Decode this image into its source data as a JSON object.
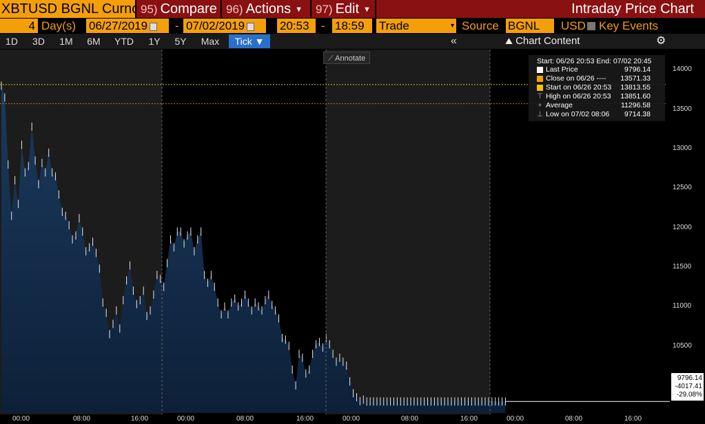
{
  "header": {
    "ticker": "XBTUSD BGNL Curnc",
    "menus": [
      {
        "num": "95)",
        "label": "Compare"
      },
      {
        "num": "96)",
        "label": "Actions"
      },
      {
        "num": "97)",
        "label": "Edit"
      }
    ],
    "title": "Intraday Price Chart"
  },
  "controls": {
    "days_value": "4",
    "days_label": "Day(s)",
    "start_date": "06/27/2019",
    "dash": "-",
    "end_date": "07/02/2019",
    "start_time": "20:53",
    "end_time": "18:59",
    "type": "Trade",
    "source_label": "Source",
    "source": "BGNL",
    "currency": "USD",
    "key_events": "Key Events"
  },
  "toolbar": {
    "ranges": [
      "1D",
      "3D",
      "1M",
      "6M",
      "YTD",
      "1Y",
      "5Y",
      "Max"
    ],
    "active": "Tick ▼",
    "chart_content": "Chart Content"
  },
  "annotate": "Annotate",
  "legend": {
    "header": "Start: 06/26 20:53  End: 07/02 20:45",
    "rows": [
      {
        "label": "Last Price",
        "value": "9796.14",
        "color": "#ffffff"
      },
      {
        "label": "Close on 06/26 ----",
        "value": "13571.33",
        "color": "#f49f0a"
      },
      {
        "label": "Start on 06/26 20:53",
        "value": "13813.55",
        "color": "#f4c20a"
      },
      {
        "label": "High on 06/26 20:53",
        "value": "13851.60",
        "glyph": "⊤"
      },
      {
        "label": "Average",
        "value": "11296.58",
        "glyph": "+"
      },
      {
        "label": "Low on 07/02 08:06",
        "value": "9714.38",
        "glyph": "⊥"
      }
    ]
  },
  "y_axis": [
    "14000",
    "13500",
    "13000",
    "12500",
    "12000",
    "11500",
    "11000",
    "10500",
    "10000"
  ],
  "x_axis": [
    "00:00",
    "08:00",
    "16:00",
    "00:00",
    "08:00",
    "16:00",
    "00:00",
    "08:00",
    "16:00",
    "00:00",
    "08:00",
    "16:00"
  ],
  "last_box": {
    "price": "9796.14",
    "change": "-4017.41",
    "pct": "-29.08%"
  },
  "chart_data": {
    "type": "area",
    "x": [
      0,
      2,
      4,
      6,
      8,
      10,
      12,
      14,
      16,
      18,
      20,
      22,
      24,
      26,
      28,
      30,
      32,
      34,
      36,
      38,
      40,
      42,
      44,
      46,
      48,
      50,
      52,
      54,
      56,
      58,
      60,
      62,
      64,
      66,
      68,
      70,
      72,
      74,
      76,
      78,
      80,
      82,
      84,
      86,
      88,
      90,
      92,
      94,
      96,
      98,
      100,
      102,
      104,
      106,
      108,
      110,
      112,
      114,
      116,
      118,
      120,
      122,
      124,
      126,
      128,
      130,
      132,
      134,
      136,
      138,
      140,
      142,
      144,
      146,
      148,
      150,
      152,
      154,
      156,
      158,
      160,
      162,
      164,
      166,
      168,
      170,
      172,
      174,
      176,
      178,
      180,
      182,
      184,
      186,
      188,
      190,
      192,
      194,
      196,
      198,
      200,
      202,
      204,
      206,
      208,
      210,
      212,
      214,
      216,
      218,
      220,
      222,
      224,
      226,
      228,
      230,
      232,
      234,
      236,
      238,
      240,
      242,
      244,
      246,
      248,
      250,
      252,
      254,
      256,
      258,
      260,
      262,
      264,
      266,
      268,
      270,
      272,
      274,
      276,
      278,
      280,
      282,
      284,
      286,
      288,
      290,
      292,
      294,
      296,
      298
    ],
    "y": [
      13800,
      13650,
      12800,
      12150,
      12600,
      12300,
      13050,
      12700,
      12780,
      13280,
      12850,
      12550,
      12820,
      12700,
      12950,
      12700,
      12650,
      12420,
      12200,
      12150,
      12030,
      11850,
      11900,
      12120,
      11950,
      11700,
      11750,
      11820,
      11680,
      11480,
      11050,
      10920,
      10650,
      10780,
      10950,
      10720,
      11080,
      11330,
      11520,
      11200,
      11030,
      11080,
      11200,
      10880,
      10950,
      11150,
      11400,
      11350,
      11250,
      11550,
      11850,
      11750,
      11950,
      11950,
      11800,
      11900,
      11950,
      11700,
      11850,
      11950,
      11400,
      11300,
      11400,
      11250,
      11050,
      10900,
      11000,
      10900,
      11050,
      11100,
      11000,
      11050,
      11150,
      11050,
      10950,
      11050,
      11000,
      10950,
      11080,
      11150,
      11020,
      10950,
      10850,
      10600,
      10580,
      10500,
      10200,
      10000,
      10400,
      10350,
      10150,
      10200,
      10400,
      10520,
      10550,
      10480,
      10600,
      10520,
      10400,
      10300,
      10350,
      10300,
      10250,
      10050,
      9900,
      9850,
      9800,
      9820,
      9796,
      9796,
      9796,
      9796,
      9796,
      9796,
      9796,
      9796,
      9796,
      9796,
      9796,
      9796,
      9796,
      9796,
      9796,
      9796,
      9796,
      9796,
      9796,
      9796,
      9796,
      9796,
      9796,
      9796,
      9796,
      9796,
      9796,
      9796,
      9796,
      9796,
      9796,
      9796,
      9796,
      9796,
      9796,
      9796,
      9796,
      9796,
      9796,
      9796,
      9796,
      9796
    ],
    "ylim": [
      9650,
      14100
    ],
    "xlim": [
      0,
      366
    ],
    "close_line": 13571.33,
    "start_line": 13813.55,
    "last": 9796.14,
    "grid": false
  }
}
